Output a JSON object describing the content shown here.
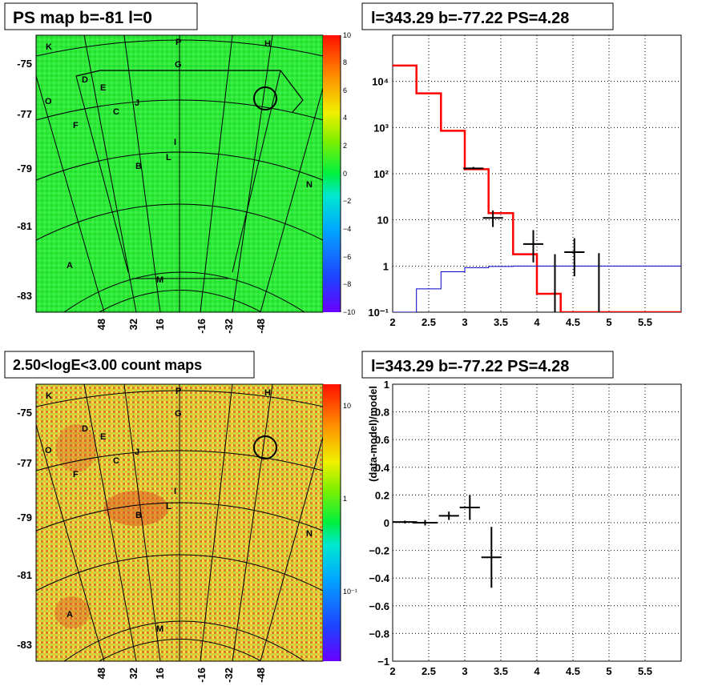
{
  "panels": {
    "tl": {
      "title": "PS map b=-81 l=0",
      "ylabels": [
        "-75",
        "-77",
        "-79",
        "-81",
        "-83"
      ],
      "xlabels": [
        "48",
        "32",
        "16",
        "-16",
        "-32",
        "-48"
      ],
      "colorbar_ticks": [
        "10",
        "8",
        "6",
        "4",
        "2",
        "0",
        "−2",
        "−4",
        "−6",
        "−8",
        "−10"
      ],
      "sources": [
        "K",
        "P",
        "H",
        "G",
        "D",
        "E",
        "O",
        "J",
        "C",
        "F",
        "I",
        "L",
        "B",
        "N",
        "A",
        "M"
      ]
    },
    "bl": {
      "title": "2.50<logE<3.00 count maps",
      "ylabels": [
        "-75",
        "-77",
        "-79",
        "-81",
        "-83"
      ],
      "xlabels": [
        "48",
        "32",
        "16",
        "-16",
        "-32",
        "-48"
      ],
      "colorbar_ticks": [
        "10",
        "1",
        "10⁻¹"
      ],
      "sources": [
        "K",
        "P",
        "H",
        "G",
        "D",
        "E",
        "O",
        "J",
        "C",
        "F",
        "I",
        "L",
        "B",
        "N",
        "A",
        "M"
      ]
    },
    "tr": {
      "title": "l=343.29 b=-77.22 PS=4.28"
    },
    "br": {
      "title": "l=343.29 b=-77.22 PS=4.28"
    }
  },
  "chart_data": [
    {
      "type": "heatmap",
      "title": "PS map b=-81 l=0",
      "ylabels": [
        "-75",
        "-77",
        "-79",
        "-81",
        "-83"
      ],
      "xlabels": [
        "48",
        "32",
        "16",
        "-16",
        "-32",
        "-48"
      ],
      "zrange": [
        -10,
        10
      ],
      "sources": [
        "K",
        "P",
        "H",
        "G",
        "D",
        "E",
        "O",
        "J",
        "C",
        "F",
        "I",
        "L",
        "B",
        "N",
        "A",
        "M"
      ]
    },
    {
      "type": "line",
      "title": "l=343.29 b=-77.22 PS=4.28",
      "xlim": [
        2,
        6
      ],
      "ylim": [
        0.1,
        100000
      ],
      "yscale": "log",
      "xticks": [
        "2",
        "2.5",
        "3",
        "3.5",
        "4",
        "4.5",
        "5",
        "5.5"
      ],
      "yticks": [
        "10⁻¹",
        "1",
        "10",
        "10²",
        "10³",
        "10⁴"
      ],
      "grid": true,
      "series": [
        {
          "color": "#ff0000",
          "style": "step",
          "edges": [
            2.0,
            2.33,
            2.67,
            3.0,
            3.33,
            3.67,
            4.0,
            4.33,
            4.67,
            6.0
          ],
          "values": [
            22000,
            5500,
            850,
            125,
            14,
            1.8,
            0.25,
            0.1,
            0.1
          ]
        },
        {
          "color": "#0000cc",
          "style": "step",
          "edges": [
            2.0,
            2.33,
            2.67,
            3.0,
            3.33,
            3.67,
            4.0,
            4.33,
            4.67,
            6.0
          ],
          "values": [
            0.05,
            0.32,
            0.75,
            0.92,
            0.98,
            1.0,
            1.0,
            1.0,
            1.0
          ]
        },
        {
          "color": "#000000",
          "style": "errorbar",
          "points": [
            {
              "x": 3.12,
              "y": 130,
              "xerr": 0.14,
              "ylo": 125,
              "yhi": 140
            },
            {
              "x": 3.39,
              "y": 11,
              "xerr": 0.14,
              "ylo": 7,
              "yhi": 16
            },
            {
              "x": 3.95,
              "y": 3,
              "xerr": 0.14,
              "ylo": 1.2,
              "yhi": 6
            },
            {
              "x": 4.25,
              "y": 0.1,
              "xerr": 0.0,
              "ylo": 0.1,
              "yhi": 1.8
            },
            {
              "x": 4.52,
              "y": 2,
              "xerr": 0.14,
              "ylo": 0.6,
              "yhi": 4
            },
            {
              "x": 4.86,
              "y": 0.1,
              "xerr": 0.0,
              "ylo": 0.1,
              "yhi": 1.9
            }
          ]
        }
      ]
    },
    {
      "type": "heatmap",
      "title": "2.50<logE<3.00 count maps",
      "ylabels": [
        "-75",
        "-77",
        "-79",
        "-81",
        "-83"
      ],
      "xlabels": [
        "48",
        "32",
        "16",
        "-16",
        "-32",
        "-48"
      ],
      "zscale": "log",
      "sources": [
        "K",
        "P",
        "H",
        "G",
        "D",
        "E",
        "O",
        "J",
        "C",
        "F",
        "I",
        "L",
        "B",
        "N",
        "A",
        "M"
      ]
    },
    {
      "type": "scatter",
      "title": "l=343.29 b=-77.22 PS=4.28",
      "ylabel": "(data-model)/model",
      "xlim": [
        2,
        6
      ],
      "ylim": [
        -1,
        1
      ],
      "xticks": [
        "2",
        "2.5",
        "3",
        "3.5",
        "4",
        "4.5",
        "5",
        "5.5"
      ],
      "yticks": [
        "1",
        "0.8",
        "0.6",
        "0.4",
        "0.2",
        "0",
        "−0.2",
        "−0.4",
        "−0.6",
        "−0.8",
        "−1"
      ],
      "grid": true,
      "points": [
        {
          "x": 2.17,
          "y": 0.005,
          "xerr": 0.17,
          "yerr": 0.01
        },
        {
          "x": 2.45,
          "y": 0.0,
          "xerr": 0.17,
          "yerr": 0.02
        },
        {
          "x": 2.78,
          "y": 0.05,
          "xerr": 0.14,
          "yerr": 0.03
        },
        {
          "x": 3.07,
          "y": 0.11,
          "xerr": 0.14,
          "yerr": 0.09
        },
        {
          "x": 3.37,
          "y": -0.25,
          "xerr": 0.14,
          "yerr": 0.22
        }
      ]
    }
  ]
}
